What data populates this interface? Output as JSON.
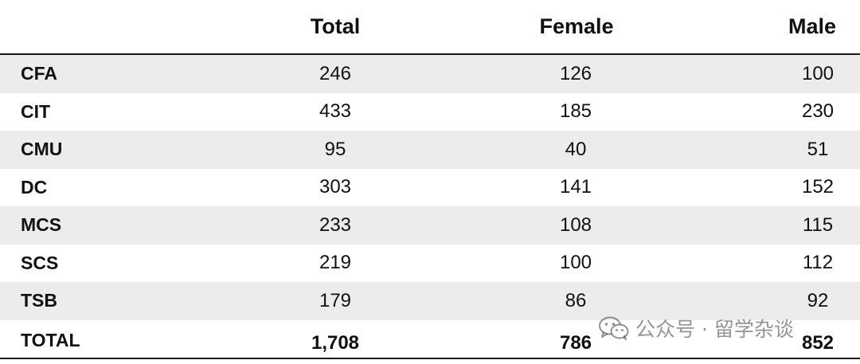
{
  "table": {
    "headers": {
      "total": "Total",
      "female": "Female",
      "male": "Male"
    },
    "rows": [
      {
        "label": "CFA",
        "total": "246",
        "female": "126",
        "male": "100"
      },
      {
        "label": "CIT",
        "total": "433",
        "female": "185",
        "male": "230"
      },
      {
        "label": "CMU",
        "total": "95",
        "female": "40",
        "male": "51"
      },
      {
        "label": "DC",
        "total": "303",
        "female": "141",
        "male": "152"
      },
      {
        "label": "MCS",
        "total": "233",
        "female": "108",
        "male": "115"
      },
      {
        "label": "SCS",
        "total": "219",
        "female": "100",
        "male": "112"
      },
      {
        "label": "TSB",
        "total": "179",
        "female": "86",
        "male": "92"
      }
    ],
    "total_row": {
      "label": "TOTAL",
      "total": "1,708",
      "female": "786",
      "male": "852"
    }
  },
  "watermark": {
    "icon": "wechat-icon",
    "text": "公众号 · 留学杂谈"
  },
  "colors": {
    "shaded_row": "#ececec",
    "rule": "#1a1a1a"
  }
}
